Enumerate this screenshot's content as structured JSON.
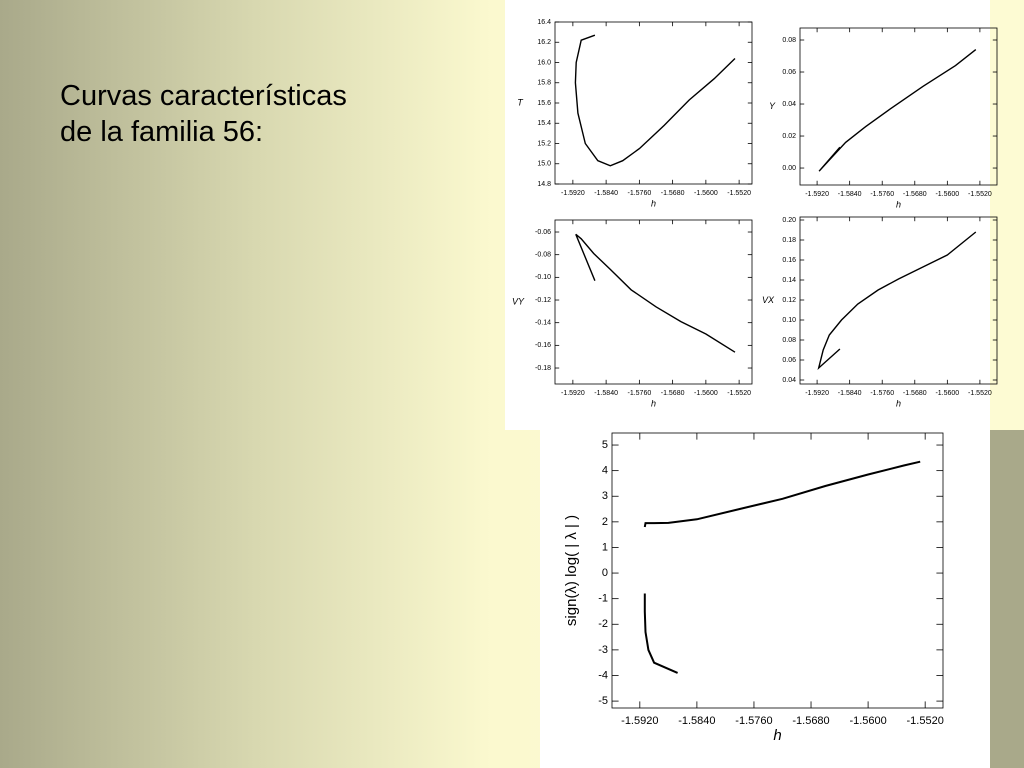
{
  "slide_text": [
    "Curvas características",
    "de la familia 56:"
  ],
  "chart_data": [
    {
      "type": "line",
      "x_label": "h",
      "y_label": "T",
      "xlim": [
        -1.5963,
        -1.5489
      ],
      "ylim": [
        14.8,
        16.4
      ],
      "xticks": [
        {
          "value": -1.592,
          "label": "-1.5920"
        },
        {
          "value": -1.584,
          "label": "-1.5840"
        },
        {
          "value": -1.576,
          "label": "-1.5760"
        },
        {
          "value": -1.568,
          "label": "-1.5680"
        },
        {
          "value": -1.56,
          "label": "-1.5600"
        },
        {
          "value": -1.552,
          "label": "-1.5520"
        }
      ],
      "yticks": [
        {
          "value": 14.8,
          "label": "14.8"
        },
        {
          "value": 15,
          "label": "15.0"
        },
        15.2,
        15.4,
        15.6,
        15.8,
        {
          "value": 16,
          "label": "16.0"
        },
        16.2,
        16.4
      ],
      "series": [
        {
          "color": "#000000",
          "x": [
            -1.5867,
            -1.59,
            -1.5912,
            -1.5914,
            -1.5908,
            -1.589,
            -1.586,
            -1.583,
            -1.58,
            -1.576,
            -1.57,
            -1.564,
            -1.558,
            -1.553
          ],
          "values": [
            16.27,
            16.22,
            16.0,
            15.8,
            15.5,
            15.2,
            15.03,
            14.98,
            15.03,
            15.15,
            15.38,
            15.63,
            15.84,
            16.04
          ]
        }
      ]
    },
    {
      "type": "line",
      "x_label": "h",
      "y_label": "Y",
      "xlim": [
        -1.5962,
        -1.5478
      ],
      "ylim": [
        -0.0106,
        0.0875
      ],
      "xticks": [
        {
          "value": -1.592,
          "label": "-1.5920"
        },
        {
          "value": -1.584,
          "label": "-1.5840"
        },
        {
          "value": -1.576,
          "label": "-1.5760"
        },
        {
          "value": -1.568,
          "label": "-1.5680"
        },
        {
          "value": -1.56,
          "label": "-1.5600"
        },
        {
          "value": -1.552,
          "label": "-1.5520"
        }
      ],
      "yticks": [
        {
          "value": 0,
          "label": "0.00"
        },
        0.02,
        0.04,
        0.06,
        0.08
      ],
      "series": [
        {
          "color": "#000000",
          "x": [
            -1.5864,
            -1.5915,
            -1.589,
            -1.585,
            -1.58,
            -1.574,
            -1.566,
            -1.558,
            -1.553
          ],
          "values": [
            0.013,
            -0.002,
            0.005,
            0.016,
            0.026,
            0.037,
            0.051,
            0.064,
            0.074
          ]
        }
      ]
    },
    {
      "type": "line",
      "x_label": "h",
      "y_label": "VY",
      "xlim": [
        -1.5963,
        -1.5489
      ],
      "ylim": [
        -0.1941,
        -0.0494
      ],
      "xticks": [
        {
          "value": -1.592,
          "label": "-1.5920"
        },
        {
          "value": -1.584,
          "label": "-1.5840"
        },
        {
          "value": -1.576,
          "label": "-1.5760"
        },
        {
          "value": -1.568,
          "label": "-1.5680"
        },
        {
          "value": -1.56,
          "label": "-1.5600"
        },
        {
          "value": -1.552,
          "label": "-1.5520"
        }
      ],
      "yticks": [
        -0.06,
        -0.08,
        {
          "value": -0.1,
          "label": "-0.10"
        },
        -0.12,
        -0.14,
        -0.16,
        -0.18
      ],
      "series": [
        {
          "color": "#000000",
          "x": [
            -1.5867,
            -1.5913,
            -1.59,
            -1.587,
            -1.583,
            -1.578,
            -1.572,
            -1.566,
            -1.56,
            -1.553
          ],
          "values": [
            -0.103,
            -0.062,
            -0.066,
            -0.079,
            -0.093,
            -0.111,
            -0.126,
            -0.139,
            -0.15,
            -0.166
          ]
        }
      ]
    },
    {
      "type": "line",
      "x_label": "h",
      "y_label": "VX",
      "xlim": [
        -1.5962,
        -1.5478
      ],
      "ylim": [
        0.036,
        0.203
      ],
      "xticks": [
        {
          "value": -1.592,
          "label": "-1.5920"
        },
        {
          "value": -1.584,
          "label": "-1.5840"
        },
        {
          "value": -1.576,
          "label": "-1.5760"
        },
        {
          "value": -1.568,
          "label": "-1.5680"
        },
        {
          "value": -1.56,
          "label": "-1.5600"
        },
        {
          "value": -1.552,
          "label": "-1.5520"
        }
      ],
      "yticks": [
        0.04,
        0.06,
        0.08,
        {
          "value": 0.1,
          "label": "0.10"
        },
        0.12,
        0.14,
        0.16,
        0.18,
        {
          "value": 0.2,
          "label": "0.20"
        }
      ],
      "series": [
        {
          "color": "#000000",
          "x": [
            -1.5864,
            -1.5916,
            -1.5905,
            -1.589,
            -1.586,
            -1.582,
            -1.577,
            -1.572,
            -1.566,
            -1.56,
            -1.553
          ],
          "values": [
            0.071,
            0.052,
            0.07,
            0.085,
            0.1,
            0.116,
            0.13,
            0.141,
            0.153,
            0.165,
            0.188
          ]
        }
      ]
    },
    {
      "type": "line",
      "x_label": "h",
      "y_label": "sign(λ) log( | λ | )",
      "xlim": [
        -1.5959,
        -1.5495
      ],
      "ylim": [
        -5.27,
        5.47
      ],
      "xticks": [
        {
          "value": -1.592,
          "label": "-1.5920"
        },
        {
          "value": -1.584,
          "label": "-1.5840"
        },
        {
          "value": -1.576,
          "label": "-1.5760"
        },
        {
          "value": -1.568,
          "label": "-1.5680"
        },
        {
          "value": -1.56,
          "label": "-1.5600"
        },
        {
          "value": -1.552,
          "label": "-1.5520"
        }
      ],
      "yticks": [
        -5,
        -4,
        -3,
        -2,
        -1,
        0,
        1,
        2,
        3,
        4,
        5
      ],
      "series": [
        {
          "color": "#000000",
          "x": [
            -1.5867,
            -1.59,
            -1.5908,
            -1.5912,
            -1.5913,
            -1.5913,
            -1.5913,
            -1.5913,
            -1.5912,
            -1.59,
            -1.588,
            -1.584,
            -1.578,
            -1.572,
            -1.566,
            -1.56,
            -1.555,
            -1.5527
          ],
          "values": [
            -3.9,
            -3.5,
            -3.0,
            -2.3,
            -1.5,
            -0.8,
            null,
            1.8,
            1.95,
            1.95,
            1.96,
            2.1,
            2.5,
            2.9,
            3.4,
            3.85,
            4.2,
            4.35
          ]
        }
      ]
    }
  ]
}
